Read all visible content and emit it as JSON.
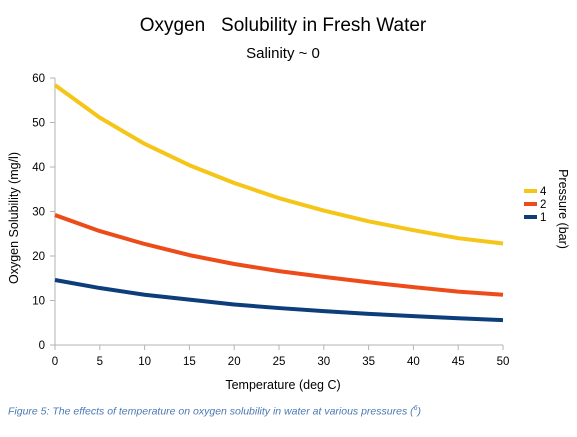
{
  "chart_data": {
    "type": "line",
    "title": "Oxygen   Solubility in Fresh Water",
    "subtitle": "Salinity ~ 0",
    "xlabel": "Temperature (deg C)",
    "ylabel": "Oxygen Solubility (mg/l)",
    "xlim": [
      0,
      50
    ],
    "ylim": [
      0,
      60
    ],
    "x_ticks": [
      0,
      5,
      10,
      15,
      20,
      25,
      30,
      35,
      40,
      45,
      50
    ],
    "y_ticks": [
      0,
      10,
      20,
      30,
      40,
      50,
      60
    ],
    "grid": false,
    "legend_title": "Pressure (bar)",
    "legend_position": "right",
    "x": [
      0,
      5,
      10,
      15,
      20,
      25,
      30,
      35,
      40,
      45,
      50
    ],
    "series": [
      {
        "name": "4",
        "color": "#f5c518",
        "values": [
          58.4,
          51.1,
          45.2,
          40.4,
          36.4,
          33.0,
          30.2,
          27.8,
          25.8,
          24.0,
          22.8
        ]
      },
      {
        "name": "2",
        "color": "#ee4b1a",
        "values": [
          29.2,
          25.6,
          22.7,
          20.2,
          18.2,
          16.6,
          15.3,
          14.1,
          13.0,
          12.0,
          11.3
        ]
      },
      {
        "name": "1",
        "color": "#0d3d7a",
        "values": [
          14.6,
          12.8,
          11.3,
          10.2,
          9.1,
          8.3,
          7.6,
          7.0,
          6.5,
          6.0,
          5.6
        ]
      }
    ]
  },
  "caption": {
    "text": "Figure 5: The effects of temperature on oxygen solubility in water at various pressures (",
    "ref": "6",
    "close": ")"
  }
}
